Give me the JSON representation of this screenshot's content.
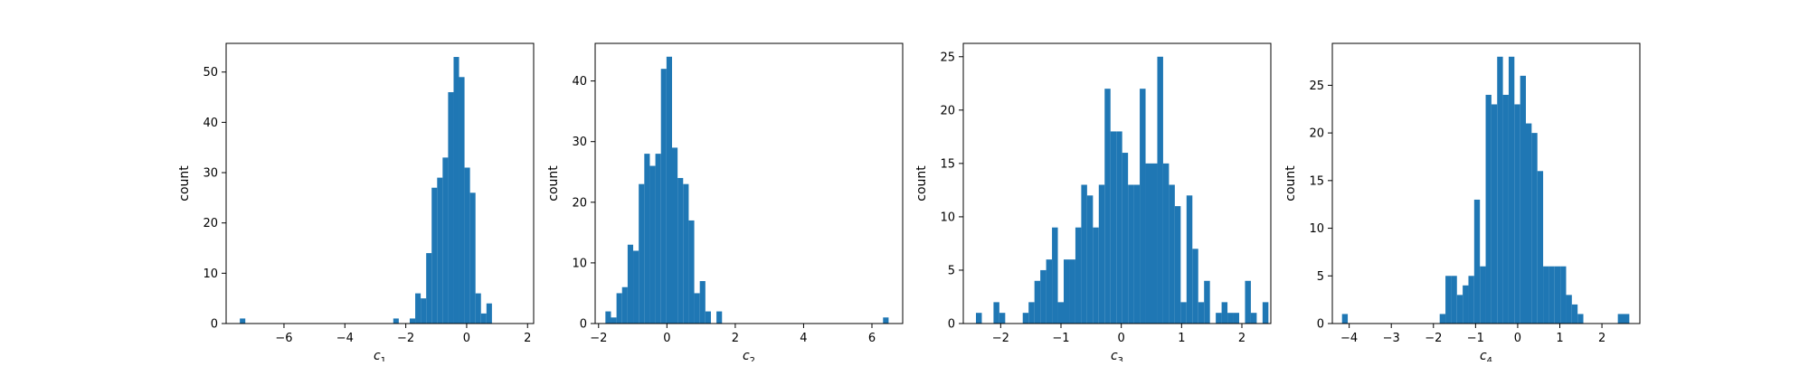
{
  "figure": {
    "background": "#ffffff",
    "bar_color": "#1f77b4"
  },
  "chart_data": [
    {
      "type": "bar",
      "title": "",
      "xlabel": "c",
      "xlabel_sub": "1",
      "ylabel": "count",
      "xlim": [
        -7.9,
        2.2
      ],
      "ylim": [
        0,
        55.7
      ],
      "xticks": [
        -6,
        -4,
        -2,
        0,
        2
      ],
      "yticks": [
        0,
        10,
        20,
        30,
        40,
        50
      ],
      "grid": false,
      "bin_start": -7.45,
      "bin_width": 0.18,
      "counts": [
        1,
        0,
        0,
        0,
        0,
        0,
        0,
        0,
        0,
        0,
        0,
        0,
        0,
        0,
        0,
        0,
        0,
        0,
        0,
        0,
        0,
        0,
        0,
        0,
        0,
        0,
        0,
        0,
        1,
        0,
        0,
        1,
        6,
        5,
        14,
        27,
        29,
        33,
        46,
        53,
        49,
        31,
        26,
        6,
        2,
        4
      ]
    },
    {
      "type": "bar",
      "title": "",
      "xlabel": "c",
      "xlabel_sub": "2",
      "ylabel": "count",
      "xlim": [
        -2.1,
        6.9
      ],
      "ylim": [
        0,
        46.2
      ],
      "xticks": [
        -2,
        0,
        2,
        4,
        6
      ],
      "yticks": [
        0,
        10,
        20,
        30,
        40
      ],
      "grid": false,
      "bin_start": -1.8,
      "bin_width": 0.1625,
      "counts": [
        2,
        1,
        5,
        6,
        13,
        12,
        23,
        28,
        26,
        28,
        42,
        44,
        29,
        24,
        23,
        17,
        5,
        7,
        2,
        0,
        2,
        0,
        0,
        0,
        0,
        0,
        0,
        0,
        0,
        0,
        0,
        0,
        0,
        0,
        0,
        0,
        0,
        0,
        0,
        0,
        0,
        0,
        0,
        0,
        0,
        0,
        0,
        0,
        0,
        0,
        1
      ]
    },
    {
      "type": "bar",
      "title": "",
      "xlabel": "c",
      "xlabel_sub": "3",
      "ylabel": "count",
      "xlim": [
        -2.62,
        2.48
      ],
      "ylim": [
        0,
        26.25
      ],
      "xticks": [
        -2,
        -1,
        0,
        1,
        2
      ],
      "yticks": [
        0,
        5,
        10,
        15,
        20,
        25
      ],
      "grid": false,
      "bin_start": -2.41,
      "bin_width": 0.097,
      "counts": [
        1,
        0,
        0,
        2,
        1,
        0,
        0,
        0,
        1,
        2,
        4,
        5,
        6,
        9,
        2,
        6,
        6,
        9,
        13,
        12,
        9,
        13,
        22,
        18,
        18,
        16,
        13,
        13,
        22,
        15,
        15,
        25,
        15,
        13,
        11,
        2,
        12,
        7,
        2,
        4,
        0,
        1,
        2,
        1,
        1,
        0,
        4,
        1,
        0,
        2
      ]
    },
    {
      "type": "bar",
      "title": "",
      "xlabel": "c",
      "xlabel_sub": "4",
      "ylabel": "count",
      "xlim": [
        -4.4,
        2.9
      ],
      "ylim": [
        0,
        29.4
      ],
      "xticks": [
        -4,
        -3,
        -2,
        -1,
        0,
        1,
        2
      ],
      "yticks": [
        0,
        5,
        10,
        15,
        20,
        25
      ],
      "grid": false,
      "bin_start": -4.17,
      "bin_width": 0.1364,
      "counts": [
        1,
        0,
        0,
        0,
        0,
        0,
        0,
        0,
        0,
        0,
        0,
        0,
        0,
        0,
        0,
        0,
        0,
        1,
        5,
        5,
        3,
        4,
        5,
        13,
        6,
        24,
        23,
        28,
        24,
        28,
        23,
        26,
        21,
        20,
        16,
        6,
        6,
        6,
        6,
        3,
        2,
        1,
        0,
        0,
        0,
        0,
        0,
        0,
        1,
        1
      ]
    }
  ]
}
